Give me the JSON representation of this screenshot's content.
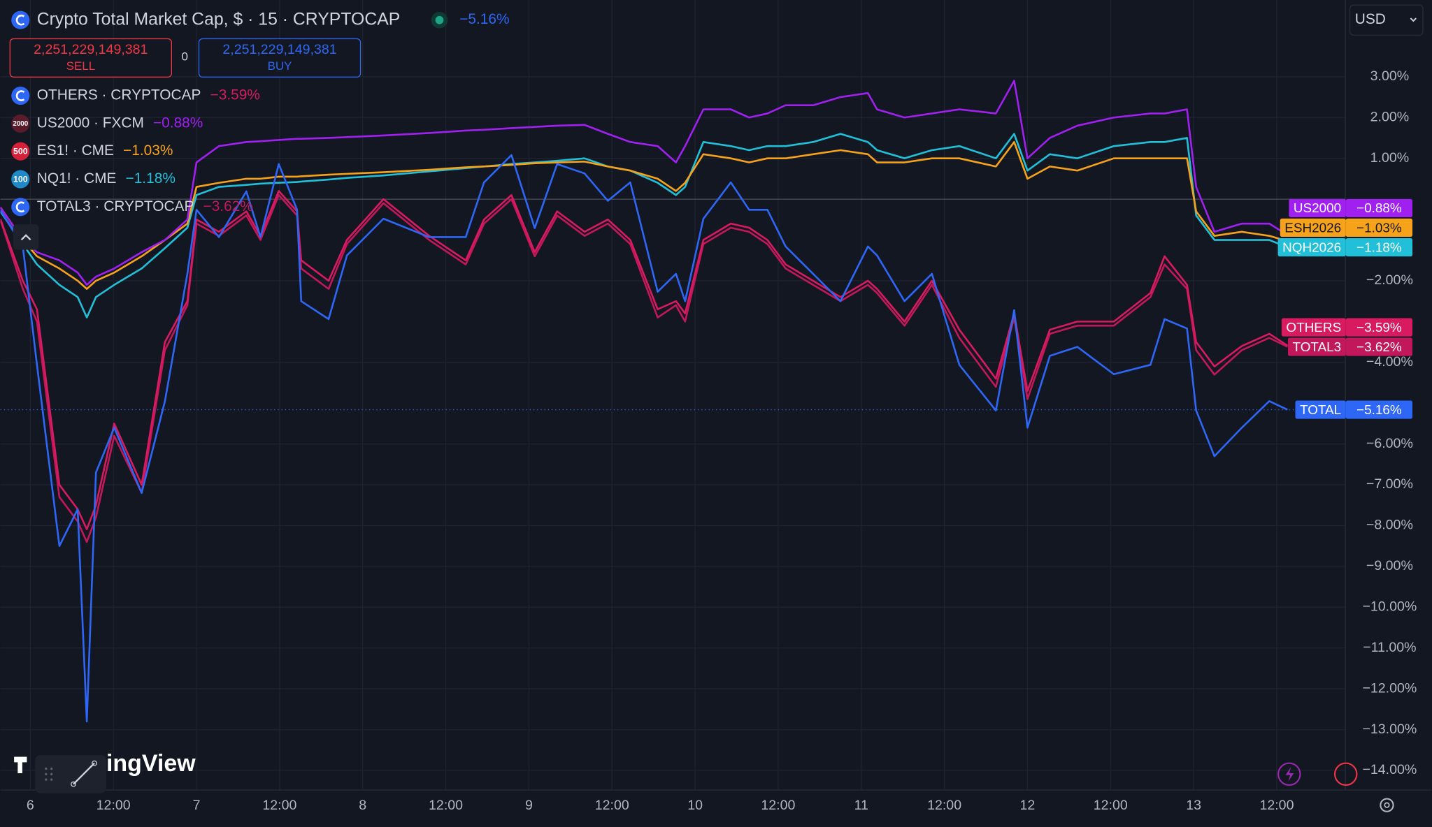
{
  "chart_data": {
    "type": "line",
    "title": "Crypto Total Market Cap, $ · 15 · CRYPTOCAP",
    "x": [
      -0.36,
      -0.09,
      0.08,
      0.35,
      0.57,
      0.68,
      0.79,
      1.01,
      1.34,
      1.62,
      1.89,
      2.0,
      2.27,
      2.6,
      2.77,
      2.99,
      3.21,
      3.26,
      3.59,
      3.81,
      4.25,
      4.8,
      5.24,
      5.46,
      5.79,
      6.07,
      6.34,
      6.67,
      6.95,
      7.22,
      7.55,
      7.77,
      7.88,
      8.1,
      8.43,
      8.65,
      8.87,
      9.09,
      9.42,
      9.75,
      10.08,
      10.19,
      10.52,
      10.85,
      11.18,
      11.62,
      11.84,
      12.0,
      12.27,
      12.6,
      13.04,
      13.48,
      13.65,
      13.92,
      14.03,
      14.25,
      14.58,
      14.91,
      15.13
    ],
    "xlim": [
      -0.36,
      15.82
    ],
    "xticks": [
      {
        "value": 0,
        "label": "6"
      },
      {
        "value": 1,
        "label": "12:00"
      },
      {
        "value": 2,
        "label": "7"
      },
      {
        "value": 3,
        "label": "12:00"
      },
      {
        "value": 4,
        "label": "8"
      },
      {
        "value": 5,
        "label": "12:00"
      },
      {
        "value": 6,
        "label": "9"
      },
      {
        "value": 7,
        "label": "12:00"
      },
      {
        "value": 8,
        "label": "10"
      },
      {
        "value": 9,
        "label": "12:00"
      },
      {
        "value": 10,
        "label": "11"
      },
      {
        "value": 11,
        "label": "12:00"
      },
      {
        "value": 12,
        "label": "12"
      },
      {
        "value": 13,
        "label": "12:00"
      },
      {
        "value": 14,
        "label": "13"
      },
      {
        "value": 15,
        "label": "12:00"
      }
    ],
    "ylim": [
      -14.47,
      4.88
    ],
    "yticks": [
      {
        "value": 3,
        "label": "3.00%"
      },
      {
        "value": 2,
        "label": "2.00%"
      },
      {
        "value": 1,
        "label": "1.00%"
      },
      {
        "value": -2,
        "label": "−2.00%"
      },
      {
        "value": -4,
        "label": "−4.00%"
      },
      {
        "value": -6,
        "label": "−6.00%"
      },
      {
        "value": -7,
        "label": "−7.00%"
      },
      {
        "value": -8,
        "label": "−8.00%"
      },
      {
        "value": -9,
        "label": "−9.00%"
      },
      {
        "value": -10,
        "label": "−10.00%"
      },
      {
        "value": -11,
        "label": "−11.00%"
      },
      {
        "value": -12,
        "label": "−12.00%"
      },
      {
        "value": -13,
        "label": "−13.00%"
      },
      {
        "value": -14,
        "label": "−14.00%"
      }
    ],
    "grid": true,
    "series": [
      {
        "name": "TOTAL",
        "color": "#2e66f5",
        "last_label": "−5.16%",
        "values": [
          -0.27,
          -1.16,
          -4.06,
          -8.5,
          -7.6,
          -12.8,
          -6.7,
          -5.6,
          -7.2,
          -4.95,
          -1.83,
          -0.26,
          -0.93,
          0.19,
          -0.93,
          0.86,
          -0.26,
          -2.5,
          -2.94,
          -1.38,
          -0.48,
          -0.93,
          -0.93,
          0.41,
          1.08,
          -0.71,
          0.86,
          0.63,
          -0.04,
          0.41,
          -2.27,
          -1.83,
          -2.5,
          -0.48,
          0.41,
          -0.26,
          -0.26,
          -1.16,
          -1.83,
          -2.5,
          -1.16,
          -1.38,
          -2.5,
          -1.83,
          -4.06,
          -5.18,
          -2.72,
          -5.6,
          -3.84,
          -3.62,
          -4.29,
          -4.06,
          -2.94,
          -3.17,
          -5.18,
          -6.3,
          -5.6,
          -4.95,
          -5.16
        ]
      },
      {
        "name": "OTHERS",
        "symbol": "OTHERS · CRYPTOCAP",
        "color": "#d81b60",
        "icon_color": "#2e66f5",
        "last_label": "−3.59%",
        "values": [
          -0.49,
          -2.0,
          -2.7,
          -7.0,
          -7.6,
          -8.09,
          -7.5,
          -5.5,
          -7.0,
          -3.5,
          -2.5,
          -0.5,
          -0.8,
          -0.3,
          -0.9,
          0.2,
          -0.3,
          -1.5,
          -2.0,
          -1.0,
          0.0,
          -0.9,
          -1.5,
          -0.5,
          0.1,
          -1.3,
          -0.3,
          -0.8,
          -0.5,
          -1.0,
          -2.7,
          -2.5,
          -2.8,
          -1.0,
          -0.6,
          -0.7,
          -1.0,
          -1.6,
          -2.0,
          -2.4,
          -2.0,
          -2.2,
          -3.0,
          -2.0,
          -3.2,
          -4.4,
          -2.8,
          -4.7,
          -3.2,
          -3.0,
          -3.0,
          -2.3,
          -1.4,
          -2.1,
          -3.5,
          -4.1,
          -3.6,
          -3.3,
          -3.59
        ]
      },
      {
        "name": "US2000",
        "symbol": "US2000 · FXCM",
        "color": "#a020f0",
        "icon_color": "#5a1b2a",
        "icon_text": "2000",
        "last_label": "−0.88%",
        "values": [
          -0.2,
          -1.0,
          -1.3,
          -1.5,
          -1.8,
          -2.1,
          -1.9,
          -1.7,
          -1.3,
          -1.0,
          -0.5,
          0.9,
          1.3,
          1.4,
          1.42,
          1.45,
          1.48,
          1.48,
          1.5,
          1.52,
          1.56,
          1.62,
          1.68,
          1.7,
          1.74,
          1.77,
          1.8,
          1.82,
          1.6,
          1.4,
          1.3,
          0.9,
          1.3,
          2.2,
          2.2,
          2.0,
          2.1,
          2.3,
          2.3,
          2.5,
          2.6,
          2.2,
          2.0,
          2.1,
          2.2,
          2.1,
          2.9,
          1.0,
          1.5,
          1.8,
          2.0,
          2.1,
          2.1,
          2.2,
          0.3,
          -0.8,
          -0.6,
          -0.6,
          -0.88
        ]
      },
      {
        "name": "ESH2026",
        "symbol": "ES1! · CME",
        "color": "#f7a21b",
        "icon_color": "#d6203a",
        "icon_text": "500",
        "last_label": "−1.03%",
        "values": [
          -0.2,
          -1.0,
          -1.4,
          -1.7,
          -2.0,
          -2.2,
          -2.0,
          -1.8,
          -1.4,
          -1.0,
          -0.6,
          0.3,
          0.4,
          0.5,
          0.5,
          0.55,
          0.55,
          0.56,
          0.6,
          0.62,
          0.66,
          0.72,
          0.78,
          0.8,
          0.84,
          0.88,
          0.9,
          0.92,
          0.8,
          0.7,
          0.5,
          0.2,
          0.4,
          1.1,
          1.0,
          0.9,
          1.0,
          1.0,
          1.1,
          1.2,
          1.1,
          0.9,
          0.9,
          1.0,
          1.0,
          0.8,
          1.4,
          0.5,
          0.8,
          0.7,
          1.0,
          1.0,
          1.0,
          1.0,
          -0.3,
          -0.9,
          -0.8,
          -0.9,
          -1.03
        ]
      },
      {
        "name": "NQH2026",
        "symbol": "NQ1! · CME",
        "color": "#22c0d8",
        "icon_color": "#1e88c8",
        "icon_text": "100",
        "last_label": "−1.18%",
        "values": [
          -0.3,
          -1.1,
          -1.6,
          -2.1,
          -2.4,
          -2.9,
          -2.4,
          -2.1,
          -1.7,
          -1.2,
          -0.7,
          0.1,
          0.3,
          0.35,
          0.38,
          0.4,
          0.42,
          0.43,
          0.48,
          0.52,
          0.58,
          0.68,
          0.76,
          0.8,
          0.86,
          0.9,
          0.94,
          1.0,
          0.8,
          0.7,
          0.4,
          0.1,
          0.3,
          1.4,
          1.3,
          1.2,
          1.3,
          1.3,
          1.4,
          1.6,
          1.4,
          1.2,
          1.0,
          1.2,
          1.3,
          1.0,
          1.6,
          0.7,
          1.1,
          1.0,
          1.3,
          1.4,
          1.4,
          1.5,
          -0.4,
          -1.0,
          -1.0,
          -1.0,
          -1.18
        ]
      },
      {
        "name": "TOTAL3",
        "symbol": "TOTAL3 · CRYPTOCAP",
        "color": "#c2185b",
        "icon_color": "#2e66f5",
        "last_label": "−3.62%",
        "values": [
          -0.5,
          -2.2,
          -3.0,
          -7.3,
          -7.9,
          -8.4,
          -7.8,
          -5.8,
          -7.2,
          -3.7,
          -2.6,
          -0.6,
          -0.9,
          -0.4,
          -1.0,
          0.1,
          -0.4,
          -1.7,
          -2.2,
          -1.1,
          -0.1,
          -1.0,
          -1.6,
          -0.6,
          0.0,
          -1.4,
          -0.4,
          -0.9,
          -0.6,
          -1.1,
          -2.9,
          -2.6,
          -3.0,
          -1.1,
          -0.7,
          -0.8,
          -1.1,
          -1.7,
          -2.1,
          -2.5,
          -2.1,
          -2.3,
          -3.1,
          -2.1,
          -3.4,
          -4.6,
          -2.9,
          -4.9,
          -3.3,
          -3.1,
          -3.1,
          -2.4,
          -1.6,
          -2.2,
          -3.7,
          -4.3,
          -3.7,
          -3.4,
          -3.62
        ]
      }
    ]
  },
  "ui": {
    "currency": "USD",
    "sell": {
      "price": "2,251,229,149,381",
      "label": "SELL"
    },
    "spread": "0",
    "buy": {
      "price": "2,251,229,149,381",
      "label": "BUY"
    },
    "watermark": "ingView"
  }
}
